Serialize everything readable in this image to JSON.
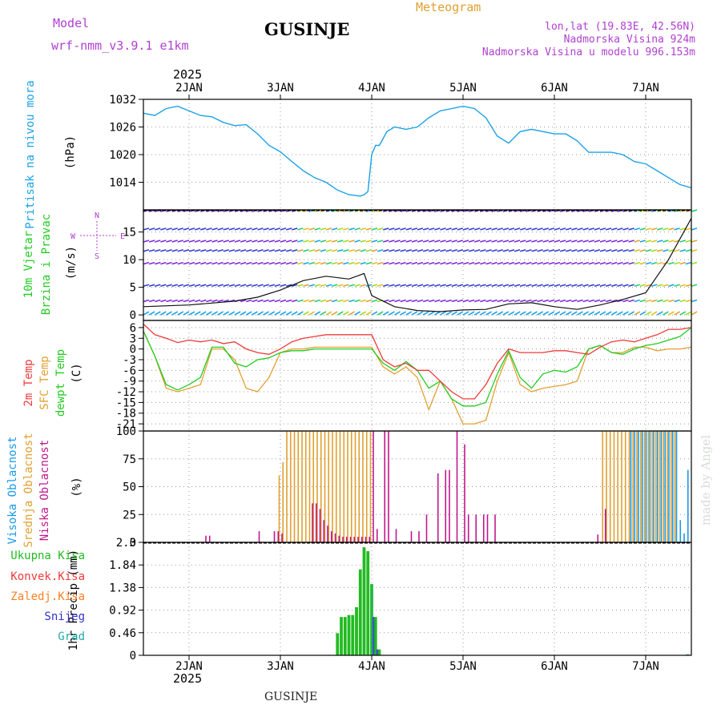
{
  "header": {
    "model_label": "Model",
    "model_name": "wrf-nmm_v3.9.1  e1km",
    "station": "GUSINJE",
    "title": "Meteogram",
    "lonlat": "lon,lat (19.83E, 42.56N)",
    "elevation": "Nadmorska Visina 924m",
    "model_elevation": "Nadmorska Visina u modelu 996.153m",
    "year_top": "2025",
    "year_bottom": "2025",
    "footer_station": "GUSINJE",
    "watermark": "made by Angel"
  },
  "colors": {
    "pressure": "#1aa2e6",
    "temp2m": "#ee3b3b",
    "sfc": "#e0a030",
    "dew": "#22cc22",
    "high_cloud": "#1a9ae6",
    "mid_cloud": "#e0a030",
    "low_cloud": "#c0188c",
    "total_precip": "#22bb22",
    "conv_precip": "#ee3b3b",
    "frz_precip": "#ff7f24",
    "snow": "#3333cc",
    "hail": "#22aaaa",
    "purple": "#b040d0"
  },
  "panels": {
    "pressure": {
      "label": "Pritisak na nivou mora",
      "unit": "(hPa)"
    },
    "wind": {
      "label1": "10m Vjetar",
      "label2": "Brzina i Pravac",
      "unit": "(m/s)",
      "compass": "N",
      "compass_w": "W",
      "compass_e": "E",
      "compass_s": "S"
    },
    "temp": {
      "label1": "2m Temp",
      "label2": "SFC Temp",
      "label3": "dewpt Temp",
      "unit": "(C)"
    },
    "cloud": {
      "label1": "Visoka Oblacnost",
      "label2": "Srednja Oblacnost",
      "label3": "Niska Oblacnost",
      "unit": "(%)"
    },
    "precip": {
      "label": "1hr Precip (mm)",
      "legend": [
        "Ukupna Kisa",
        "Konvek.Kisa",
        "Zaledj.Kisa",
        "Snijeg",
        "Grad"
      ]
    }
  },
  "chart_data": {
    "type": "line",
    "x_unit": "hours since 2025-01-01 12:00",
    "days": [
      "2JAN",
      "3JAN",
      "4JAN",
      "5JAN",
      "6JAN",
      "7JAN"
    ],
    "day_ticks_hours": [
      12,
      36,
      60,
      84,
      108,
      132
    ],
    "xlim": [
      0,
      144
    ],
    "pressure": {
      "ylim": [
        1008,
        1032
      ],
      "yticks": [
        "1014",
        "1020",
        "1026",
        "1032"
      ],
      "x": [
        0,
        3,
        6,
        9,
        12,
        15,
        18,
        21,
        24,
        27,
        30,
        33,
        36,
        39,
        42,
        45,
        48,
        51,
        54,
        57,
        58,
        59,
        60,
        61,
        62,
        64,
        66,
        69,
        72,
        75,
        78,
        81,
        84,
        87,
        90,
        93,
        96,
        99,
        102,
        105,
        108,
        111,
        114,
        117,
        120,
        123,
        126,
        129,
        132,
        135,
        138,
        141,
        144
      ],
      "values": [
        1029,
        1028.5,
        1030,
        1030.5,
        1029.5,
        1028.5,
        1028.2,
        1027,
        1026.3,
        1026.5,
        1024.5,
        1022,
        1020.6,
        1018.5,
        1016.5,
        1015,
        1014,
        1012.3,
        1011.3,
        1011,
        1011.3,
        1012,
        1020,
        1022,
        1022,
        1025,
        1026,
        1025.5,
        1026,
        1028,
        1029.5,
        1030,
        1030.5,
        1030,
        1028,
        1024,
        1022.5,
        1025,
        1025.5,
        1025,
        1024.5,
        1024.5,
        1023,
        1020.5,
        1020.5,
        1020.5,
        1020,
        1018.5,
        1018,
        1016.5,
        1015,
        1013.5,
        1012.8
      ]
    },
    "wind": {
      "ylim": [
        -1,
        19
      ],
      "yticks": [
        "0",
        "5",
        "10",
        "15"
      ],
      "levels": [
        0,
        2.4,
        5.2,
        9.2,
        11.5,
        13.2,
        15.4,
        18.7
      ],
      "speed_x": [
        0,
        12,
        24,
        30,
        36,
        42,
        48,
        54,
        58,
        60,
        66,
        72,
        78,
        84,
        90,
        96,
        102,
        108,
        114,
        120,
        126,
        132,
        138,
        144
      ],
      "speed_values": [
        1.5,
        1.8,
        2.5,
        3.2,
        4.5,
        6.2,
        7.0,
        6.5,
        7.5,
        3.5,
        1.5,
        0.8,
        0.6,
        0.9,
        1.0,
        2.0,
        2.2,
        1.5,
        1.0,
        1.8,
        2.8,
        4.0,
        10.0,
        17.5
      ]
    },
    "temperature": {
      "ylim": [
        -23,
        8
      ],
      "yticks": [
        "6",
        "3",
        "0",
        "-3",
        "-6",
        "-9",
        "-12",
        "-15",
        "-18",
        "-21"
      ],
      "x": [
        0,
        3,
        6,
        9,
        12,
        15,
        18,
        21,
        24,
        27,
        30,
        33,
        36,
        39,
        42,
        45,
        48,
        51,
        54,
        57,
        60,
        63,
        66,
        69,
        72,
        75,
        78,
        81,
        84,
        87,
        90,
        93,
        96,
        99,
        102,
        105,
        108,
        111,
        114,
        117,
        120,
        123,
        126,
        129,
        132,
        135,
        138,
        141,
        144
      ],
      "temp2m": [
        7,
        4,
        3,
        1.8,
        2.5,
        2,
        2.5,
        1.5,
        2,
        0,
        -1,
        -1.5,
        0,
        2,
        3,
        3.5,
        4,
        4,
        4,
        4,
        4,
        -3,
        -5,
        -4,
        -6,
        -6,
        -9,
        -12,
        -14,
        -14,
        -10,
        -4,
        0,
        -1,
        -1,
        -1,
        -0.5,
        -0.5,
        -1,
        -1.5,
        0.5,
        2,
        2.5,
        2,
        3,
        4,
        5.5,
        5.5,
        6
      ],
      "sfc": [
        5,
        -2,
        -11,
        -12,
        -11,
        -10,
        0,
        0,
        -3,
        -11,
        -12,
        -8,
        -1,
        0,
        0,
        0.5,
        0.5,
        0.5,
        0.5,
        0.5,
        0.5,
        -5,
        -7,
        -5,
        -8,
        -17,
        -9,
        -14,
        -21,
        -21,
        -20,
        -9,
        -1,
        -10,
        -12,
        -11,
        -10.5,
        -10,
        -9,
        0,
        1,
        -1,
        -1,
        0.5,
        0.5,
        -0.5,
        0,
        0,
        0.5
      ],
      "dewpt": [
        5,
        -2,
        -10,
        -11.5,
        -10,
        -8,
        0.5,
        0.5,
        -4,
        -5,
        -3,
        -2.5,
        -1,
        -0.5,
        -0.5,
        0,
        0,
        0,
        0,
        0,
        0,
        -4,
        -6,
        -3.5,
        -6,
        -11,
        -9,
        -14,
        -16,
        -16,
        -15,
        -7,
        -0.5,
        -8,
        -11,
        -7,
        -6,
        -6.5,
        -5,
        0,
        1,
        -1,
        -1.5,
        0,
        1,
        1.5,
        2.5,
        3.5,
        6
      ]
    },
    "clouds": {
      "ylim": [
        0,
        100
      ],
      "yticks": [
        "0",
        "25",
        "50",
        "75",
        "100"
      ],
      "low": {
        "x": [
          16,
          17,
          30,
          34,
          35,
          36,
          44,
          45,
          46,
          47,
          48,
          49,
          50,
          51,
          52,
          53,
          54,
          55,
          56,
          57,
          58,
          59,
          60,
          61,
          63,
          64,
          66,
          70,
          72,
          74,
          77,
          79,
          80,
          82,
          84,
          85,
          87,
          89,
          90,
          92,
          119,
          121
        ],
        "values": [
          6,
          6,
          10,
          10,
          10,
          8,
          35,
          35,
          30,
          20,
          15,
          10,
          8,
          6,
          5,
          5,
          5,
          5,
          5,
          5,
          5,
          5,
          100,
          12,
          100,
          100,
          12,
          10,
          10,
          25,
          62,
          65,
          65,
          100,
          88,
          25,
          25,
          25,
          25,
          25,
          7,
          30
        ]
      },
      "mid": {
        "x": [
          36,
          37,
          38,
          39,
          40,
          41,
          42,
          43,
          44,
          45,
          46,
          47,
          48,
          49,
          50,
          51,
          52,
          53,
          54,
          55,
          56,
          57,
          58,
          59,
          60,
          121,
          122,
          123,
          124,
          125,
          126,
          127,
          128,
          129,
          130,
          131,
          132,
          133,
          134,
          135,
          136,
          137,
          138,
          139,
          140
        ],
        "values": [
          60,
          72,
          100,
          100,
          100,
          100,
          100,
          100,
          100,
          100,
          100,
          100,
          100,
          100,
          100,
          100,
          100,
          100,
          100,
          100,
          100,
          100,
          100,
          100,
          100,
          100,
          100,
          100,
          100,
          100,
          100,
          100,
          100,
          100,
          100,
          100,
          100,
          100,
          100,
          100,
          100,
          100,
          100,
          100,
          100
        ]
      },
      "high": {
        "x": [
          128,
          129,
          130,
          131,
          132,
          133,
          134,
          135,
          136,
          137,
          138,
          139,
          140,
          141,
          142,
          143
        ],
        "values": [
          100,
          100,
          100,
          100,
          100,
          100,
          100,
          100,
          100,
          100,
          100,
          100,
          100,
          20,
          8,
          65
        ]
      }
    },
    "precip": {
      "ylim": [
        0,
        2.3
      ],
      "yticks": [
        "0",
        "0.46",
        "0.92",
        "1.38",
        "1.84",
        "2.3"
      ],
      "total": {
        "x": [
          51,
          52,
          53,
          54,
          55,
          56,
          57,
          58,
          59,
          60,
          61,
          62,
          143
        ],
        "values": [
          0.45,
          0.78,
          0.78,
          0.82,
          0.82,
          0.98,
          1.75,
          2.2,
          2.12,
          1.45,
          0.78,
          0.12,
          0.02
        ]
      },
      "snow": {
        "x": [
          60,
          61
        ],
        "values": [
          0.78,
          0.12
        ]
      },
      "hail": {
        "x": [
          60
        ],
        "values": [
          1.38
        ]
      }
    }
  }
}
